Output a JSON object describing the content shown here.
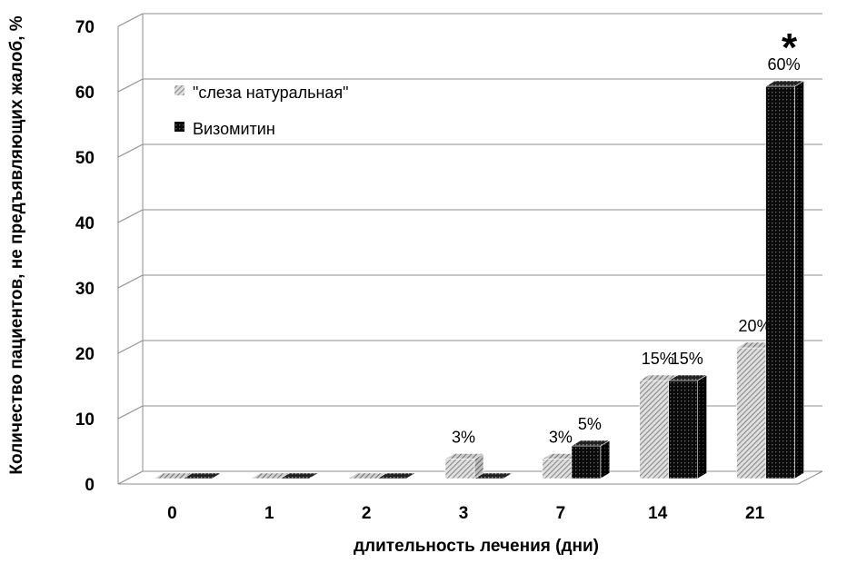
{
  "chart_data": {
    "type": "bar",
    "categories": [
      "0",
      "1",
      "2",
      "3",
      "7",
      "14",
      "21"
    ],
    "series": [
      {
        "name": "\"слеза натуральная\"",
        "values": [
          0,
          0,
          0,
          3,
          3,
          15,
          20
        ],
        "labels": [
          "",
          "",
          "",
          "3%",
          "3%",
          "15%",
          "20%"
        ],
        "color": "#9a9a9a",
        "pattern": "hatch"
      },
      {
        "name": "Визомитин",
        "values": [
          0,
          0,
          0,
          0,
          5,
          15,
          60
        ],
        "labels": [
          "",
          "",
          "",
          "",
          "5%",
          "15%",
          "60%"
        ],
        "color": "#111111",
        "pattern": "dots"
      }
    ],
    "xlabel": "длительность лечения (дни)",
    "ylabel": "Количество пациентов, не предъявляющих жалоб, %",
    "ylim": [
      0,
      70
    ],
    "yticks": [
      0,
      10,
      20,
      30,
      40,
      50,
      60,
      70
    ],
    "grid": true,
    "legend": "top-left",
    "annotation": {
      "text": "*",
      "category": "21",
      "series": 1
    }
  }
}
